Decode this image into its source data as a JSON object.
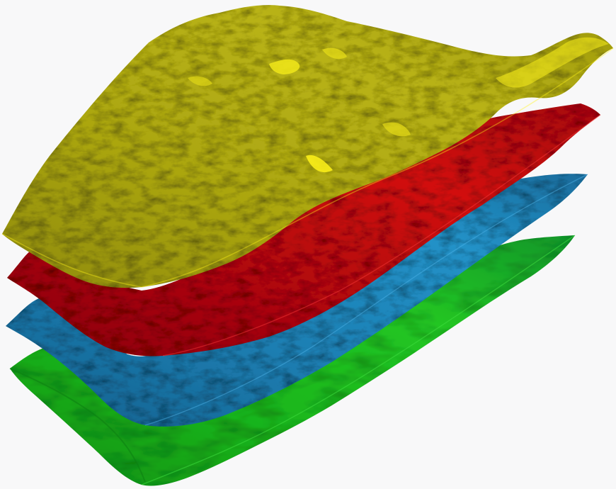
{
  "scene": {
    "background": "#f8f8f9",
    "surfaces": [
      {
        "name": "green-surface",
        "base": "#16b21a",
        "light": "#3fe03f",
        "dark": "#0b6f10"
      },
      {
        "name": "blue-surface",
        "base": "#1c7fb3",
        "light": "#2aa2e0",
        "dark": "#0f4f78"
      },
      {
        "name": "red-surface",
        "base": "#b3070b",
        "light": "#ff1818",
        "dark": "#6a0306"
      },
      {
        "name": "yellow-surface",
        "base": "#a8a311",
        "light": "#fff21a",
        "dark": "#4f4a07"
      }
    ]
  }
}
